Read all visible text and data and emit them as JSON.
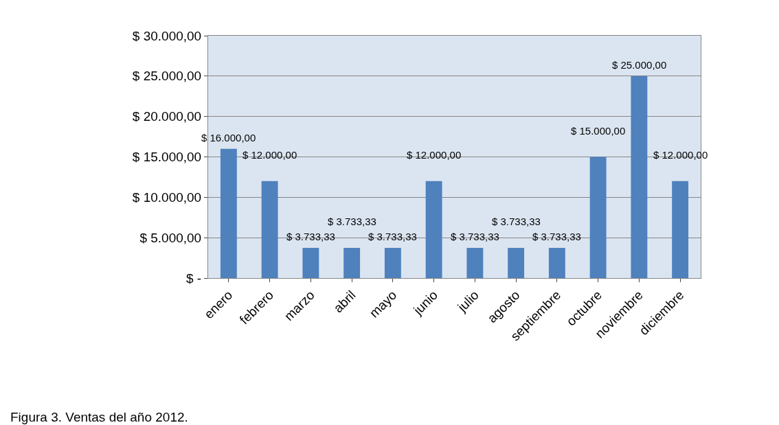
{
  "chart_data": {
    "type": "bar",
    "categories": [
      "enero",
      "febrero",
      "marzo",
      "abril",
      "mayo",
      "junio",
      "julio",
      "agosto",
      "septiembre",
      "octubre",
      "noviembre",
      "diciembre"
    ],
    "values": [
      16000,
      12000,
      3733.33,
      3733.33,
      3733.33,
      12000,
      3733.33,
      3733.33,
      3733.33,
      15000,
      25000,
      12000
    ],
    "value_labels": [
      "$ 16.000,00",
      "$ 12.000,00",
      "$ 3.733,33",
      "$ 3.733,33",
      "$ 3.733,33",
      "$ 12.000,00",
      "$ 3.733,33",
      "$ 3.733,33",
      "$ 3.733,33",
      "$ 15.000,00",
      "$ 25.000,00",
      "$ 12.000,00"
    ],
    "color": "#4f81bd",
    "ylim": [
      0,
      30000
    ],
    "yticks": [
      {
        "value": 0,
        "label": "$ -"
      },
      {
        "value": 5000,
        "label": "$ 5.000,00"
      },
      {
        "value": 10000,
        "label": "$ 10.000,00"
      },
      {
        "value": 15000,
        "label": "$ 15.000,00"
      },
      {
        "value": 20000,
        "label": "$ 20.000,00"
      },
      {
        "value": 25000,
        "label": "$ 25.000,00"
      },
      {
        "value": 30000,
        "label": "$ 30.000,00"
      }
    ],
    "grid": "y",
    "annotations": [
      "Figura 3. Ventas del año 2012."
    ]
  }
}
